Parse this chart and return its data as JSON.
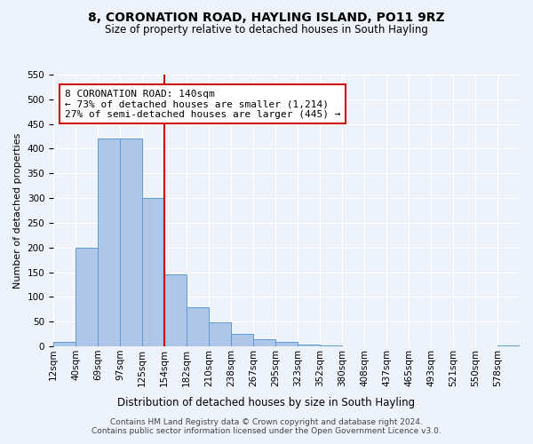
{
  "title": "8, CORONATION ROAD, HAYLING ISLAND, PO11 9RZ",
  "subtitle": "Size of property relative to detached houses in South Hayling",
  "xlabel": "Distribution of detached houses by size in South Hayling",
  "ylabel": "Number of detached properties",
  "bin_labels": [
    "12sqm",
    "40sqm",
    "69sqm",
    "97sqm",
    "125sqm",
    "154sqm",
    "182sqm",
    "210sqm",
    "238sqm",
    "267sqm",
    "295sqm",
    "323sqm",
    "352sqm",
    "380sqm",
    "408sqm",
    "437sqm",
    "465sqm",
    "493sqm",
    "521sqm",
    "550sqm",
    "578sqm"
  ],
  "bar_values": [
    10,
    200,
    420,
    420,
    300,
    145,
    80,
    48,
    25,
    14,
    10,
    3,
    2,
    1,
    1,
    0,
    0,
    0,
    0,
    0,
    2
  ],
  "bar_color": "#aec6e8",
  "bar_edge_color": "#5b9bd5",
  "vline_color": "#cc0000",
  "vline_pos": 5.0,
  "annotation_box_text": "8 CORONATION ROAD: 140sqm\n← 73% of detached houses are smaller (1,214)\n27% of semi-detached houses are larger (445) →",
  "ylim": [
    0,
    550
  ],
  "yticks": [
    0,
    50,
    100,
    150,
    200,
    250,
    300,
    350,
    400,
    450,
    500,
    550
  ],
  "background_color": "#eef2fa",
  "grid_color": "#ffffff",
  "footer_text": "Contains HM Land Registry data © Crown copyright and database right 2024.\nContains public sector information licensed under the Open Government Licence v3.0.",
  "title_fontsize": 10,
  "subtitle_fontsize": 8.5,
  "xlabel_fontsize": 8.5,
  "ylabel_fontsize": 8,
  "annotation_fontsize": 8,
  "footer_fontsize": 6.5,
  "tick_fontsize": 7.5
}
